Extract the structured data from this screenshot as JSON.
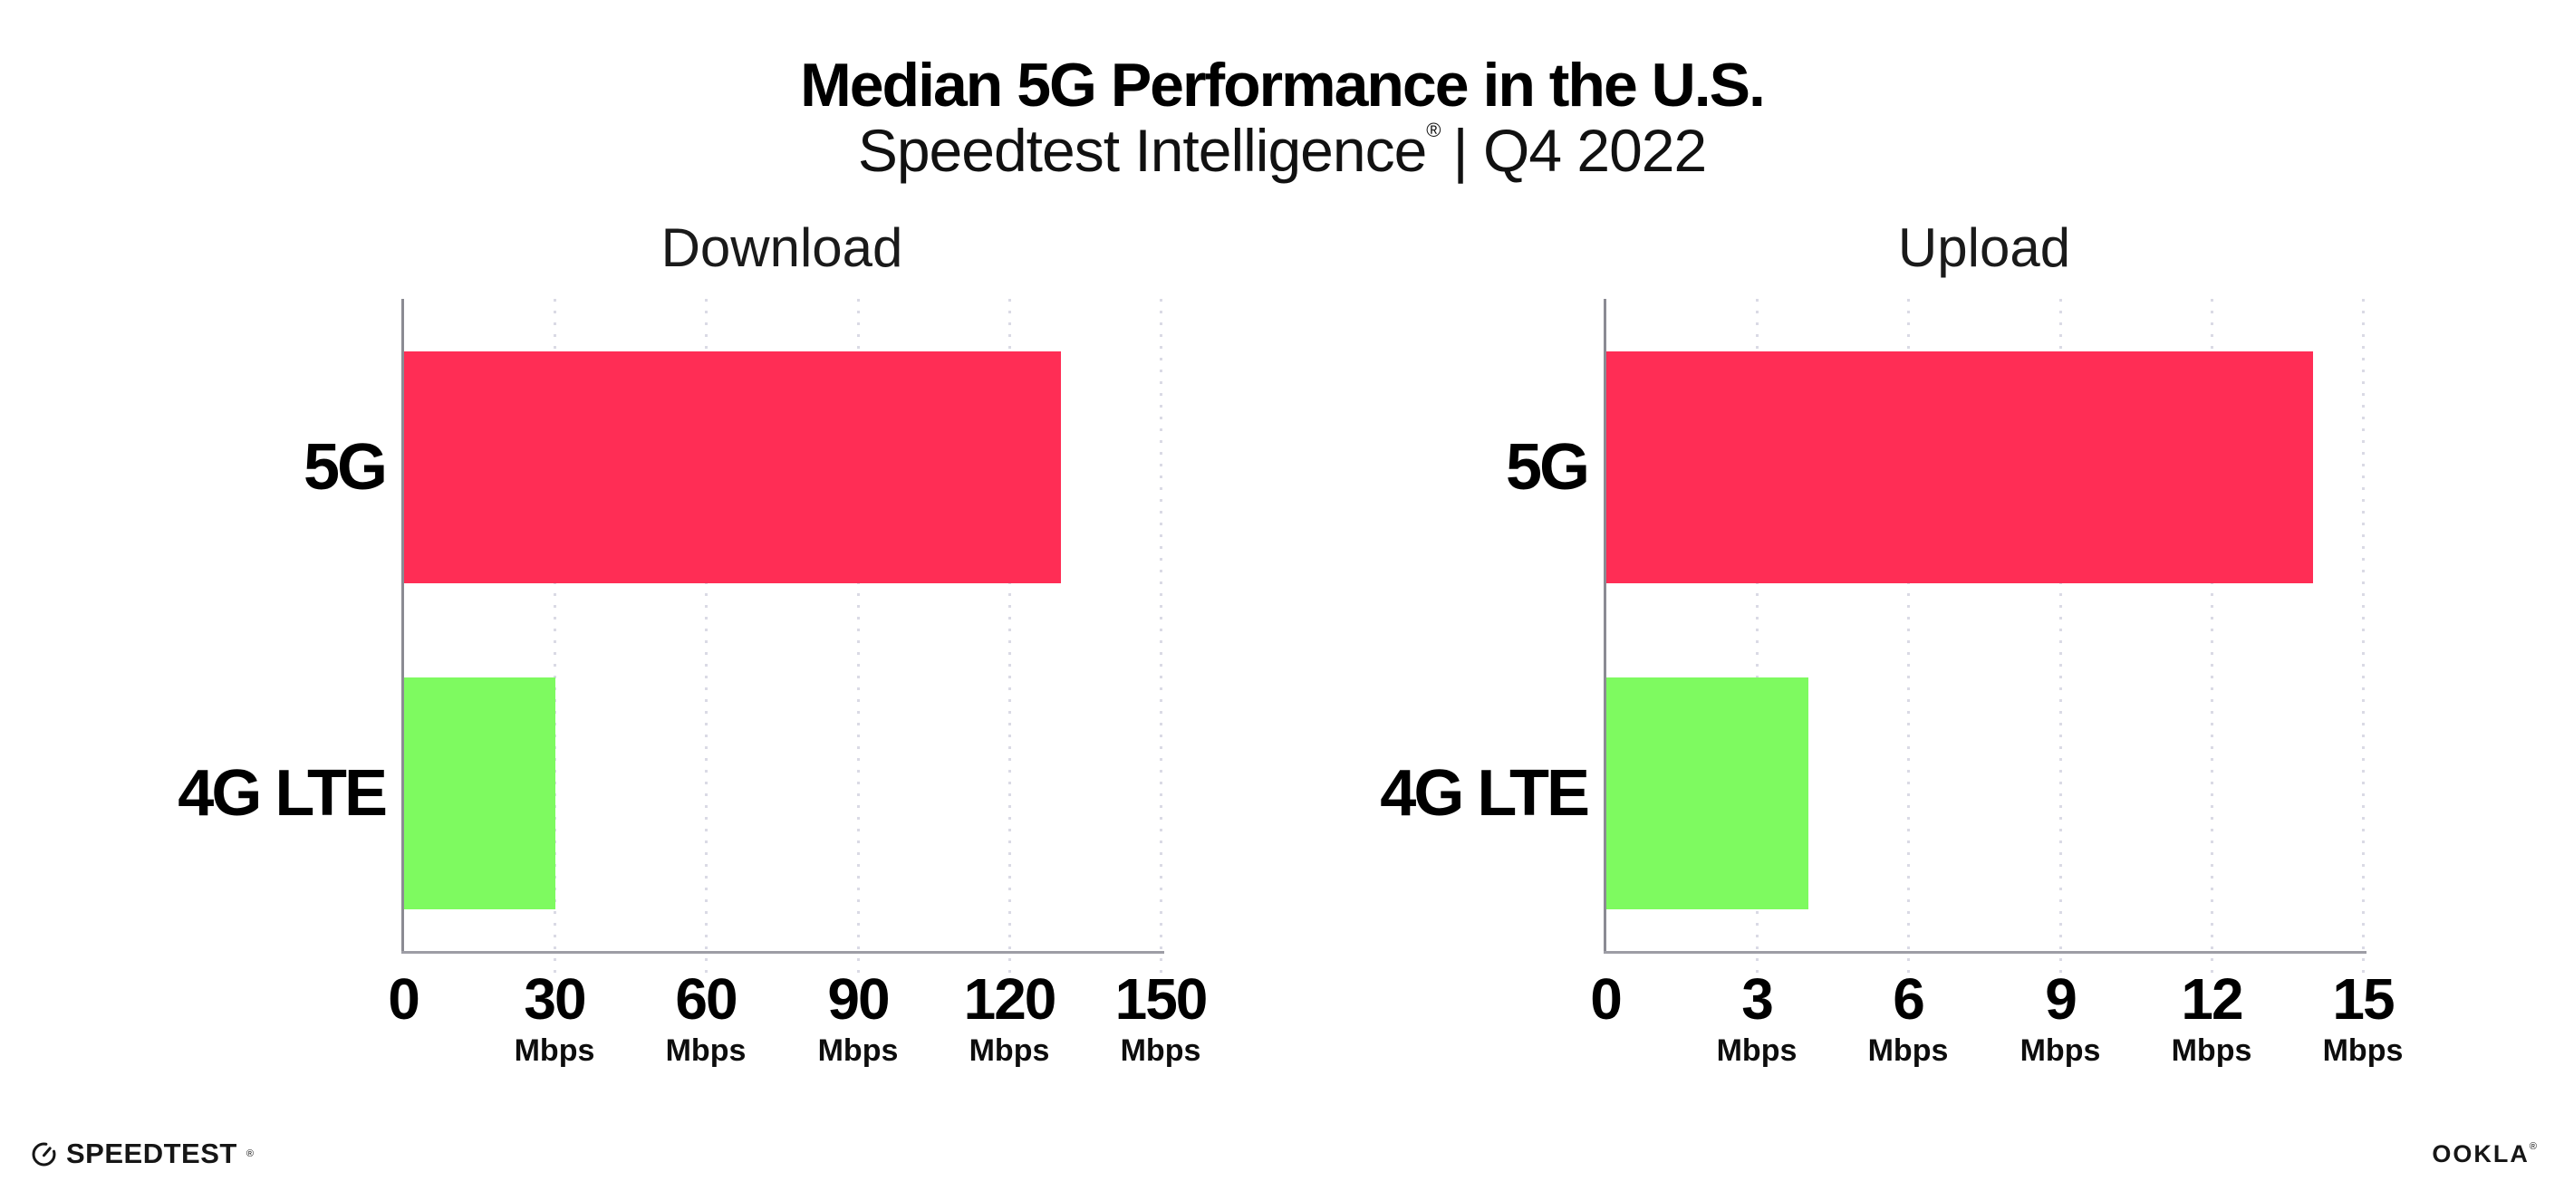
{
  "header": {
    "title": "Median 5G Performance in the U.S.",
    "subtitle_brand": "Speedtest Intelligence",
    "subtitle_reg": "®",
    "subtitle_rest": "| Q4 2022"
  },
  "colors": {
    "bar_5g": "#FF2D55",
    "bar_4g_lte": "#7EFA60",
    "x_axis": "#9D9DA5",
    "y_axis": "#8B8B93",
    "gridline": "#DADAE5",
    "text": "#000000"
  },
  "chart_data": [
    {
      "type": "bar",
      "orientation": "horizontal",
      "title": "Download",
      "categories": [
        "5G",
        "4G LTE"
      ],
      "values": [
        130,
        30
      ],
      "unit": "Mbps",
      "xlim": [
        0,
        150
      ],
      "x_ticks": [
        0,
        30,
        60,
        90,
        120,
        150
      ],
      "tick_unit_label": "Mbps",
      "grid": "dotted-vertical",
      "legend": "none",
      "bar_colors": [
        "#FF2D55",
        "#7EFA60"
      ]
    },
    {
      "type": "bar",
      "orientation": "horizontal",
      "title": "Upload",
      "categories": [
        "5G",
        "4G LTE"
      ],
      "values": [
        14,
        4
      ],
      "unit": "Mbps",
      "xlim": [
        0,
        15
      ],
      "x_ticks": [
        0,
        3,
        6,
        9,
        12,
        15
      ],
      "tick_unit_label": "Mbps",
      "grid": "dotted-vertical",
      "legend": "none",
      "bar_colors": [
        "#FF2D55",
        "#7EFA60"
      ]
    }
  ],
  "footer": {
    "speedtest_label": "SPEEDTEST",
    "speedtest_reg": "®",
    "speedtest_icon": "speedometer-gauge-icon",
    "ookla_label": "OOKLA",
    "ookla_reg": "®"
  }
}
